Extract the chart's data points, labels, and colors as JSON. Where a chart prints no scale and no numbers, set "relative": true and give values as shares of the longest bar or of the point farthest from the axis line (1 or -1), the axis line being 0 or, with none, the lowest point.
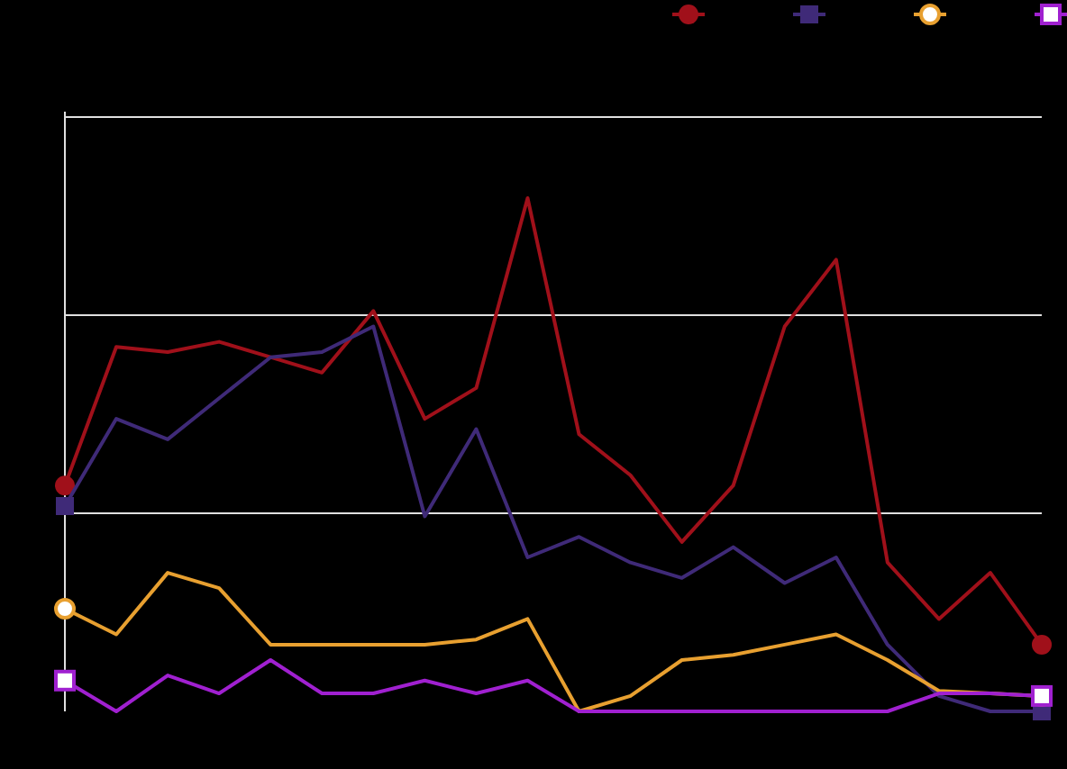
{
  "chart_data": {
    "type": "line",
    "relative": true,
    "categories": [
      null,
      null,
      null,
      null,
      null,
      null,
      null,
      null,
      null,
      null,
      null,
      null,
      null,
      null,
      null,
      null,
      null,
      null,
      null,
      null
    ],
    "series": [
      {
        "color": "#a0101a",
        "values": [
          0.44,
          0.71,
          0.7,
          0.72,
          0.69,
          0.66,
          0.78,
          0.57,
          0.63,
          1,
          0.54,
          0.46,
          0.33,
          0.44,
          0.75,
          0.88,
          0.29,
          0.18,
          0.27,
          0.13
        ]
      },
      {
        "color": "#3f2a78",
        "values": [
          0.4,
          0.57,
          0.53,
          0.61,
          0.69,
          0.7,
          0.75,
          0.38,
          0.55,
          0.3,
          0.34,
          0.29,
          0.26,
          0.32,
          0.25,
          0.3,
          0.13,
          0.03,
          0,
          0
        ]
      },
      {
        "color": "#e8a030",
        "values": [
          0.2,
          0.15,
          0.27,
          0.24,
          0.13,
          0.13,
          0.13,
          0.13,
          0.14,
          0.18,
          0,
          0.03,
          0.1,
          0.11,
          0.13,
          0.15,
          0.1,
          0.04,
          0.035,
          0.03
        ]
      },
      {
        "color": "#a020d0",
        "values": [
          0.06,
          0,
          0.07,
          0.035,
          0.1,
          0.035,
          0.035,
          0.06,
          0.035,
          0.06,
          0,
          0,
          0,
          0,
          0,
          0,
          0,
          0.035,
          0.035,
          0.03
        ]
      }
    ],
    "ref_lines": [
      {
        "axis": "y",
        "value": 0.386,
        "color": "#e0e0e0"
      },
      {
        "axis": "y",
        "value": 0.772,
        "color": "#e0e0e0"
      }
    ],
    "line_style": "solid"
  }
}
